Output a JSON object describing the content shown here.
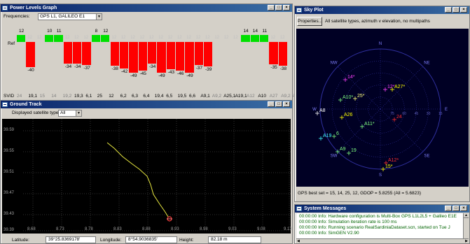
{
  "power_window": {
    "title": "Power Levels Graph",
    "freq_label": "Frequencies:",
    "freq_value": "GPS L1, GALILEO E1",
    "ref_label": "Ref",
    "svid_label": "SVID",
    "upper": [
      "12",
      "",
      "",
      "10",
      "11",
      "",
      "",
      "",
      "8",
      "12",
      "",
      "",
      "",
      "",
      "",
      "",
      "",
      "",
      "",
      "",
      "",
      "",
      "",
      "",
      "14",
      "14",
      "11",
      "",
      ""
    ],
    "lower": [
      "",
      "-40",
      "",
      "",
      "",
      "-34",
      "-34",
      "-37",
      "",
      "",
      "-38",
      "-42",
      "-49",
      "-45",
      "-34",
      "-49",
      "-43",
      "-46",
      "-49",
      "-37",
      "-39",
      "",
      "",
      "",
      "",
      "",
      "",
      "-35",
      "-38"
    ],
    "svids": [
      "24",
      "19,1",
      "15",
      "14",
      "19,2",
      "19,3",
      "6,1",
      "25",
      "12",
      "6,2",
      "6,3",
      "6,4",
      "19,4",
      "6,5",
      "19,5",
      "6,6",
      "A9,1",
      "A9,2",
      "A25,1",
      "A19,1",
      "A12",
      "A10",
      "A27",
      "A9,2",
      "A8"
    ],
    "colors": {
      "green": "#00e000",
      "red": "#ff0000",
      "grey": "#c0c0c0"
    }
  },
  "ground_window": {
    "title": "Ground Track",
    "sat_label": "Displayed satellite types",
    "sat_value": "All",
    "y_ticks": [
      "39.59",
      "39.55",
      "39.51",
      "39.47",
      "39.43",
      "39.39"
    ],
    "x_ticks": [
      "8.68",
      "8.73",
      "8.78",
      "8.83",
      "8.88",
      "8.93",
      "8.98",
      "9.03",
      "9.08",
      "9.13"
    ],
    "lat_label": "Latitude:",
    "lat_value": "39°25.8369178'",
    "lon_label": "Longitude:",
    "lon_value": "8°54.9036835'",
    "height_label": "Height:",
    "height_value": "82.18 m"
  },
  "sky_window": {
    "title": "Sky Plot",
    "properties_label": "Properties...",
    "filter_text": "All satellite types, azimuth v elevation, no multipaths",
    "directions": {
      "n": "N",
      "ne": "NE",
      "e": "E",
      "se": "SE",
      "s": "S",
      "sw": "SW",
      "w": "W",
      "nw": "NW"
    },
    "elev_labels": [
      "75",
      "60",
      "45",
      "30",
      "15"
    ],
    "sats": [
      {
        "label": "14*",
        "color": "#ff40ff"
      },
      {
        "label": "12*",
        "color": "#ff40ff"
      },
      {
        "label": "A27*",
        "color": "#ffff00"
      },
      {
        "label": "A10*",
        "color": "#80ff80"
      },
      {
        "label": "25*",
        "color": "#ffff80"
      },
      {
        "label": "A8",
        "color": "#ffffff"
      },
      {
        "label": "A26",
        "color": "#ffff00"
      },
      {
        "label": "24",
        "color": "#ff3030"
      },
      {
        "label": "A11*",
        "color": "#80ff80"
      },
      {
        "label": "6",
        "color": "#80ff80"
      },
      {
        "label": "A19",
        "color": "#40ffff"
      },
      {
        "label": "A9",
        "color": "#80ff80"
      },
      {
        "label": "19",
        "color": "#80ff80"
      },
      {
        "label": "A12*",
        "color": "#ff3030"
      },
      {
        "label": "15*",
        "color": "#ffff00"
      }
    ],
    "status": "GPS best set = 15, 14, 25, 12, GDOP = 5.8255 (All = 5.6823)"
  },
  "msg_window": {
    "title": "System Messages",
    "lines": [
      "00:00:00 Info: Hardware configuration is Multi-Box GPS L1L2L5 + Galileo E1E",
      "00:00:00 Info: Simulation iteration rate is 100 ms",
      "00:00:00 Info: Running scenario RealSardiniaDataset.scn, started on Tue J",
      "00:00:00 Info: SimGEN V2.90"
    ]
  }
}
